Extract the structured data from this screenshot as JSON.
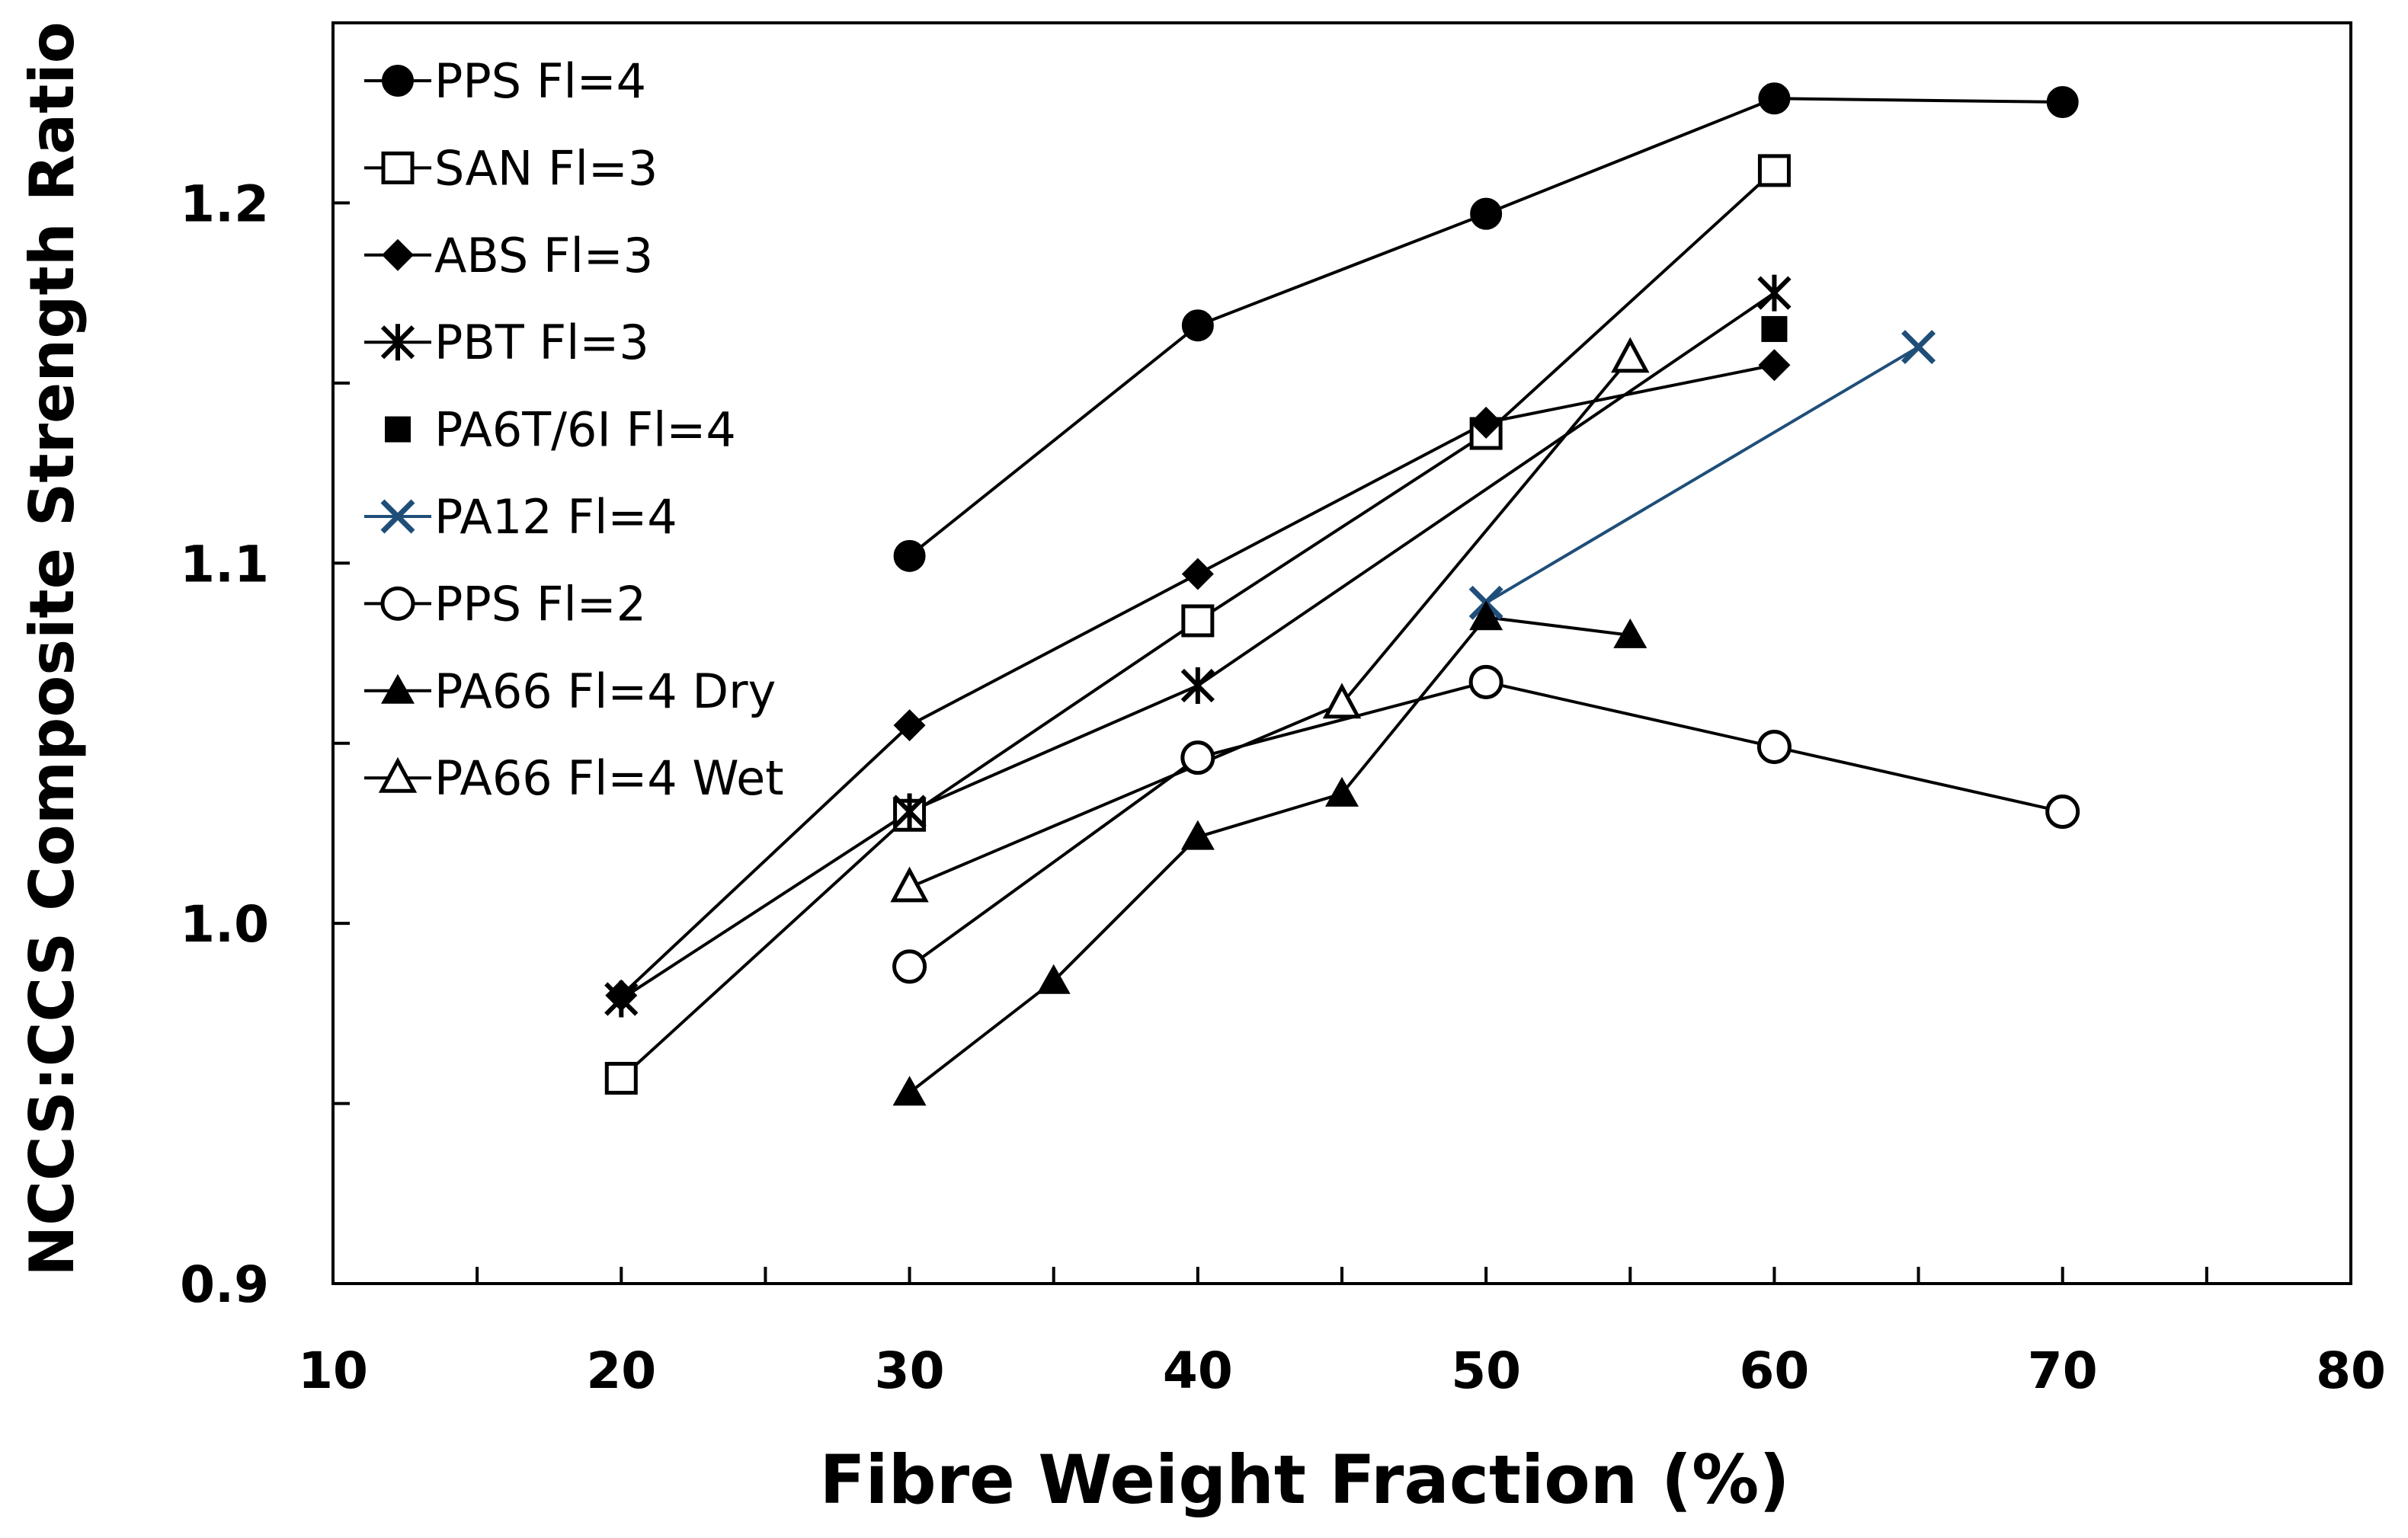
{
  "chart_data": {
    "type": "line",
    "title": "",
    "xlabel": "Fibre Weight Fraction (%)",
    "ylabel": "NCCS:CCS Composite Strength Ratio",
    "xlim": [
      10,
      80
    ],
    "ylim": [
      0.9,
      1.25
    ],
    "x_ticks": [
      10,
      20,
      30,
      40,
      50,
      60,
      70,
      80
    ],
    "x_tick_labels": [
      "10",
      "20",
      "30",
      "40",
      "50",
      "60",
      "70",
      "80"
    ],
    "x_minor_ticks": [
      15,
      25,
      35,
      45,
      55,
      65,
      75
    ],
    "y_ticks": [
      0.9,
      1.0,
      1.1,
      1.2
    ],
    "y_tick_labels": [
      "0.9",
      "1.0",
      "1.1",
      "1.2"
    ],
    "y_minor_ticks": [
      0.95,
      1.05,
      1.15
    ],
    "grid": false,
    "legend_position": "top-left",
    "series": [
      {
        "name": "PPS Fl=4",
        "marker": "filled-circle",
        "color": "#000000",
        "line": true,
        "x": [
          30,
          40,
          50,
          60,
          70
        ],
        "y": [
          1.102,
          1.166,
          1.197,
          1.229,
          1.228
        ]
      },
      {
        "name": "SAN Fl=3",
        "marker": "open-square",
        "color": "#000000",
        "line": true,
        "x": [
          20,
          30,
          40,
          50,
          60
        ],
        "y": [
          0.957,
          1.03,
          1.084,
          1.136,
          1.209
        ]
      },
      {
        "name": "ABS Fl=3",
        "marker": "filled-diamond",
        "color": "#000000",
        "line": true,
        "x": [
          20,
          30,
          40,
          50,
          60
        ],
        "y": [
          0.98,
          1.055,
          1.097,
          1.139,
          1.155
        ]
      },
      {
        "name": "PBT Fl=3",
        "marker": "asterisk",
        "color": "#000000",
        "line": true,
        "x": [
          20,
          30,
          40,
          60
        ],
        "y": [
          0.979,
          1.031,
          1.066,
          1.175
        ]
      },
      {
        "name": "PA6T/6I Fl=4",
        "marker": "filled-square",
        "color": "#000000",
        "line": false,
        "x": [
          60
        ],
        "y": [
          1.165
        ]
      },
      {
        "name": "PA12 Fl=4",
        "marker": "x",
        "color": "#1f4e79",
        "line": true,
        "x": [
          50,
          65
        ],
        "y": [
          1.089,
          1.16
        ]
      },
      {
        "name": "PPS Fl=2",
        "marker": "open-circle",
        "color": "#000000",
        "line": true,
        "x": [
          30,
          40,
          50,
          60,
          70
        ],
        "y": [
          0.988,
          1.046,
          1.067,
          1.049,
          1.031
        ]
      },
      {
        "name": "PA66 Fl=4 Dry",
        "marker": "filled-triangle",
        "color": "#000000",
        "line": true,
        "x": [
          30,
          35,
          40,
          45,
          50,
          55
        ],
        "y": [
          0.953,
          0.984,
          1.024,
          1.036,
          1.085,
          1.08
        ]
      },
      {
        "name": "PA66 Fl=4 Wet",
        "marker": "open-triangle",
        "color": "#000000",
        "line": true,
        "x": [
          30,
          45,
          55
        ],
        "y": [
          1.01,
          1.061,
          1.157
        ]
      }
    ]
  }
}
